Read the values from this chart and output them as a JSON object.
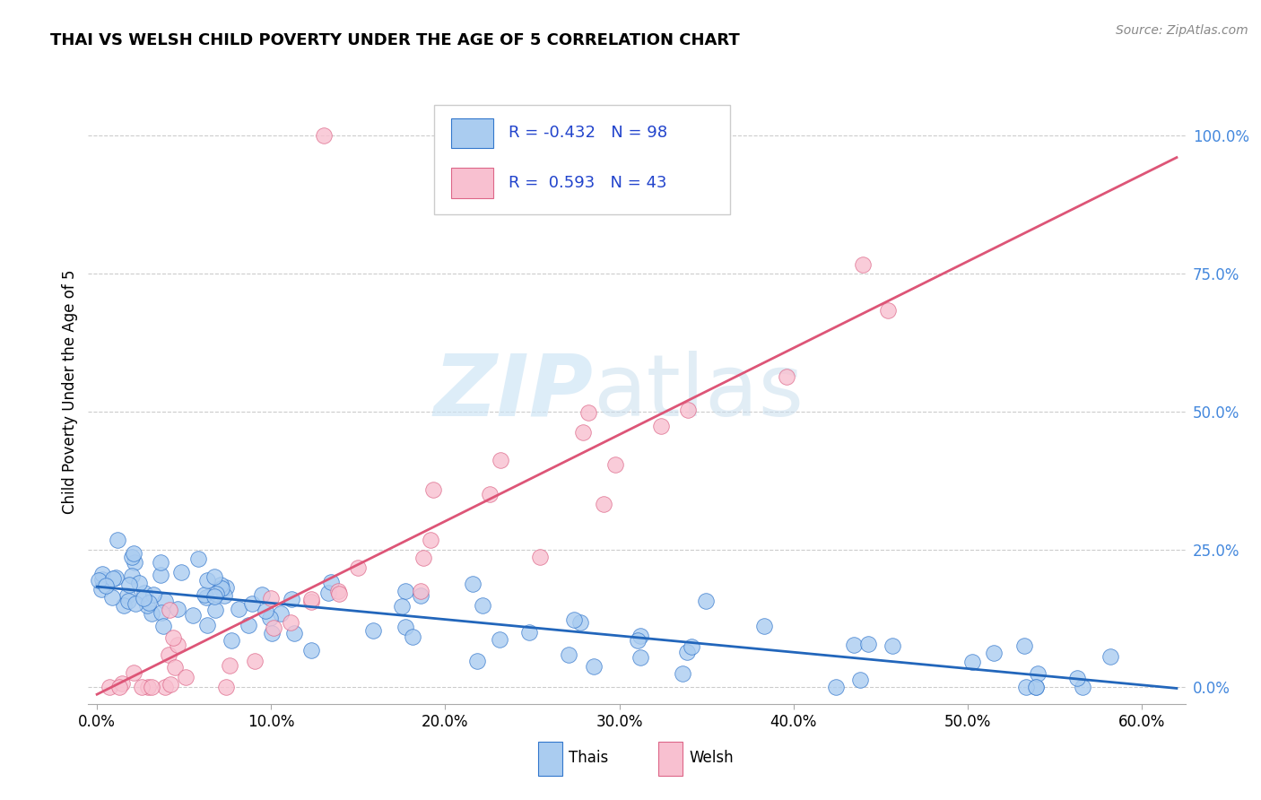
{
  "title": "THAI VS WELSH CHILD POVERTY UNDER THE AGE OF 5 CORRELATION CHART",
  "source": "Source: ZipAtlas.com",
  "ylabel": "Child Poverty Under the Age of 5",
  "xtick_vals": [
    0.0,
    0.1,
    0.2,
    0.3,
    0.4,
    0.5,
    0.6
  ],
  "ytick_vals": [
    0.0,
    0.25,
    0.5,
    0.75,
    1.0
  ],
  "xlim": [
    -0.005,
    0.625
  ],
  "ylim": [
    -0.03,
    1.1
  ],
  "thai_R": -0.432,
  "thai_N": 98,
  "welsh_R": 0.593,
  "welsh_N": 43,
  "thai_color": "#aaccf0",
  "thai_edge_color": "#3377cc",
  "thai_line_color": "#2266bb",
  "welsh_color": "#f8c0d0",
  "welsh_edge_color": "#dd6688",
  "welsh_line_color": "#dd5577",
  "legend_text_color": "#2244cc",
  "right_tick_color": "#4488dd",
  "grid_color": "#cccccc",
  "background_color": "#ffffff"
}
